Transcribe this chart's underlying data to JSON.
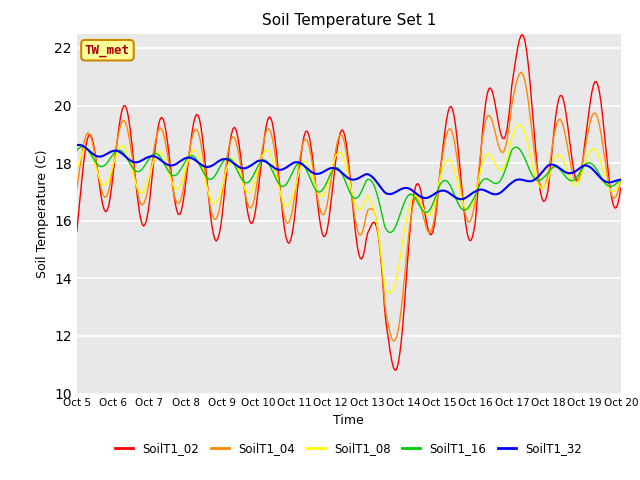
{
  "title": "Soil Temperature Set 1",
  "xlabel": "Time",
  "ylabel": "Soil Temperature (C)",
  "xlim": [
    0,
    15
  ],
  "ylim": [
    10,
    22.5
  ],
  "yticks": [
    10,
    12,
    14,
    16,
    18,
    20,
    22
  ],
  "xtick_labels": [
    "Oct 5",
    "Oct 6",
    "Oct 7",
    "Oct 8",
    "Oct 9",
    "Oct 10",
    "Oct 11",
    "Oct 12",
    "Oct 13",
    "Oct 14",
    "Oct 15",
    "Oct 16",
    "Oct 17",
    "Oct 18",
    "Oct 19",
    "Oct 20"
  ],
  "legend_labels": [
    "SoilT1_02",
    "SoilT1_04",
    "SoilT1_08",
    "SoilT1_16",
    "SoilT1_32"
  ],
  "colors": [
    "#ff0000",
    "#ff8800",
    "#ffff00",
    "#00cc00",
    "#0000ff"
  ],
  "annotation_text": "TW_met",
  "annotation_box_color": "#ffff99",
  "annotation_box_edge": "#cc8800",
  "background_color": "#e8e8e8",
  "grid_color": "#ffffff"
}
